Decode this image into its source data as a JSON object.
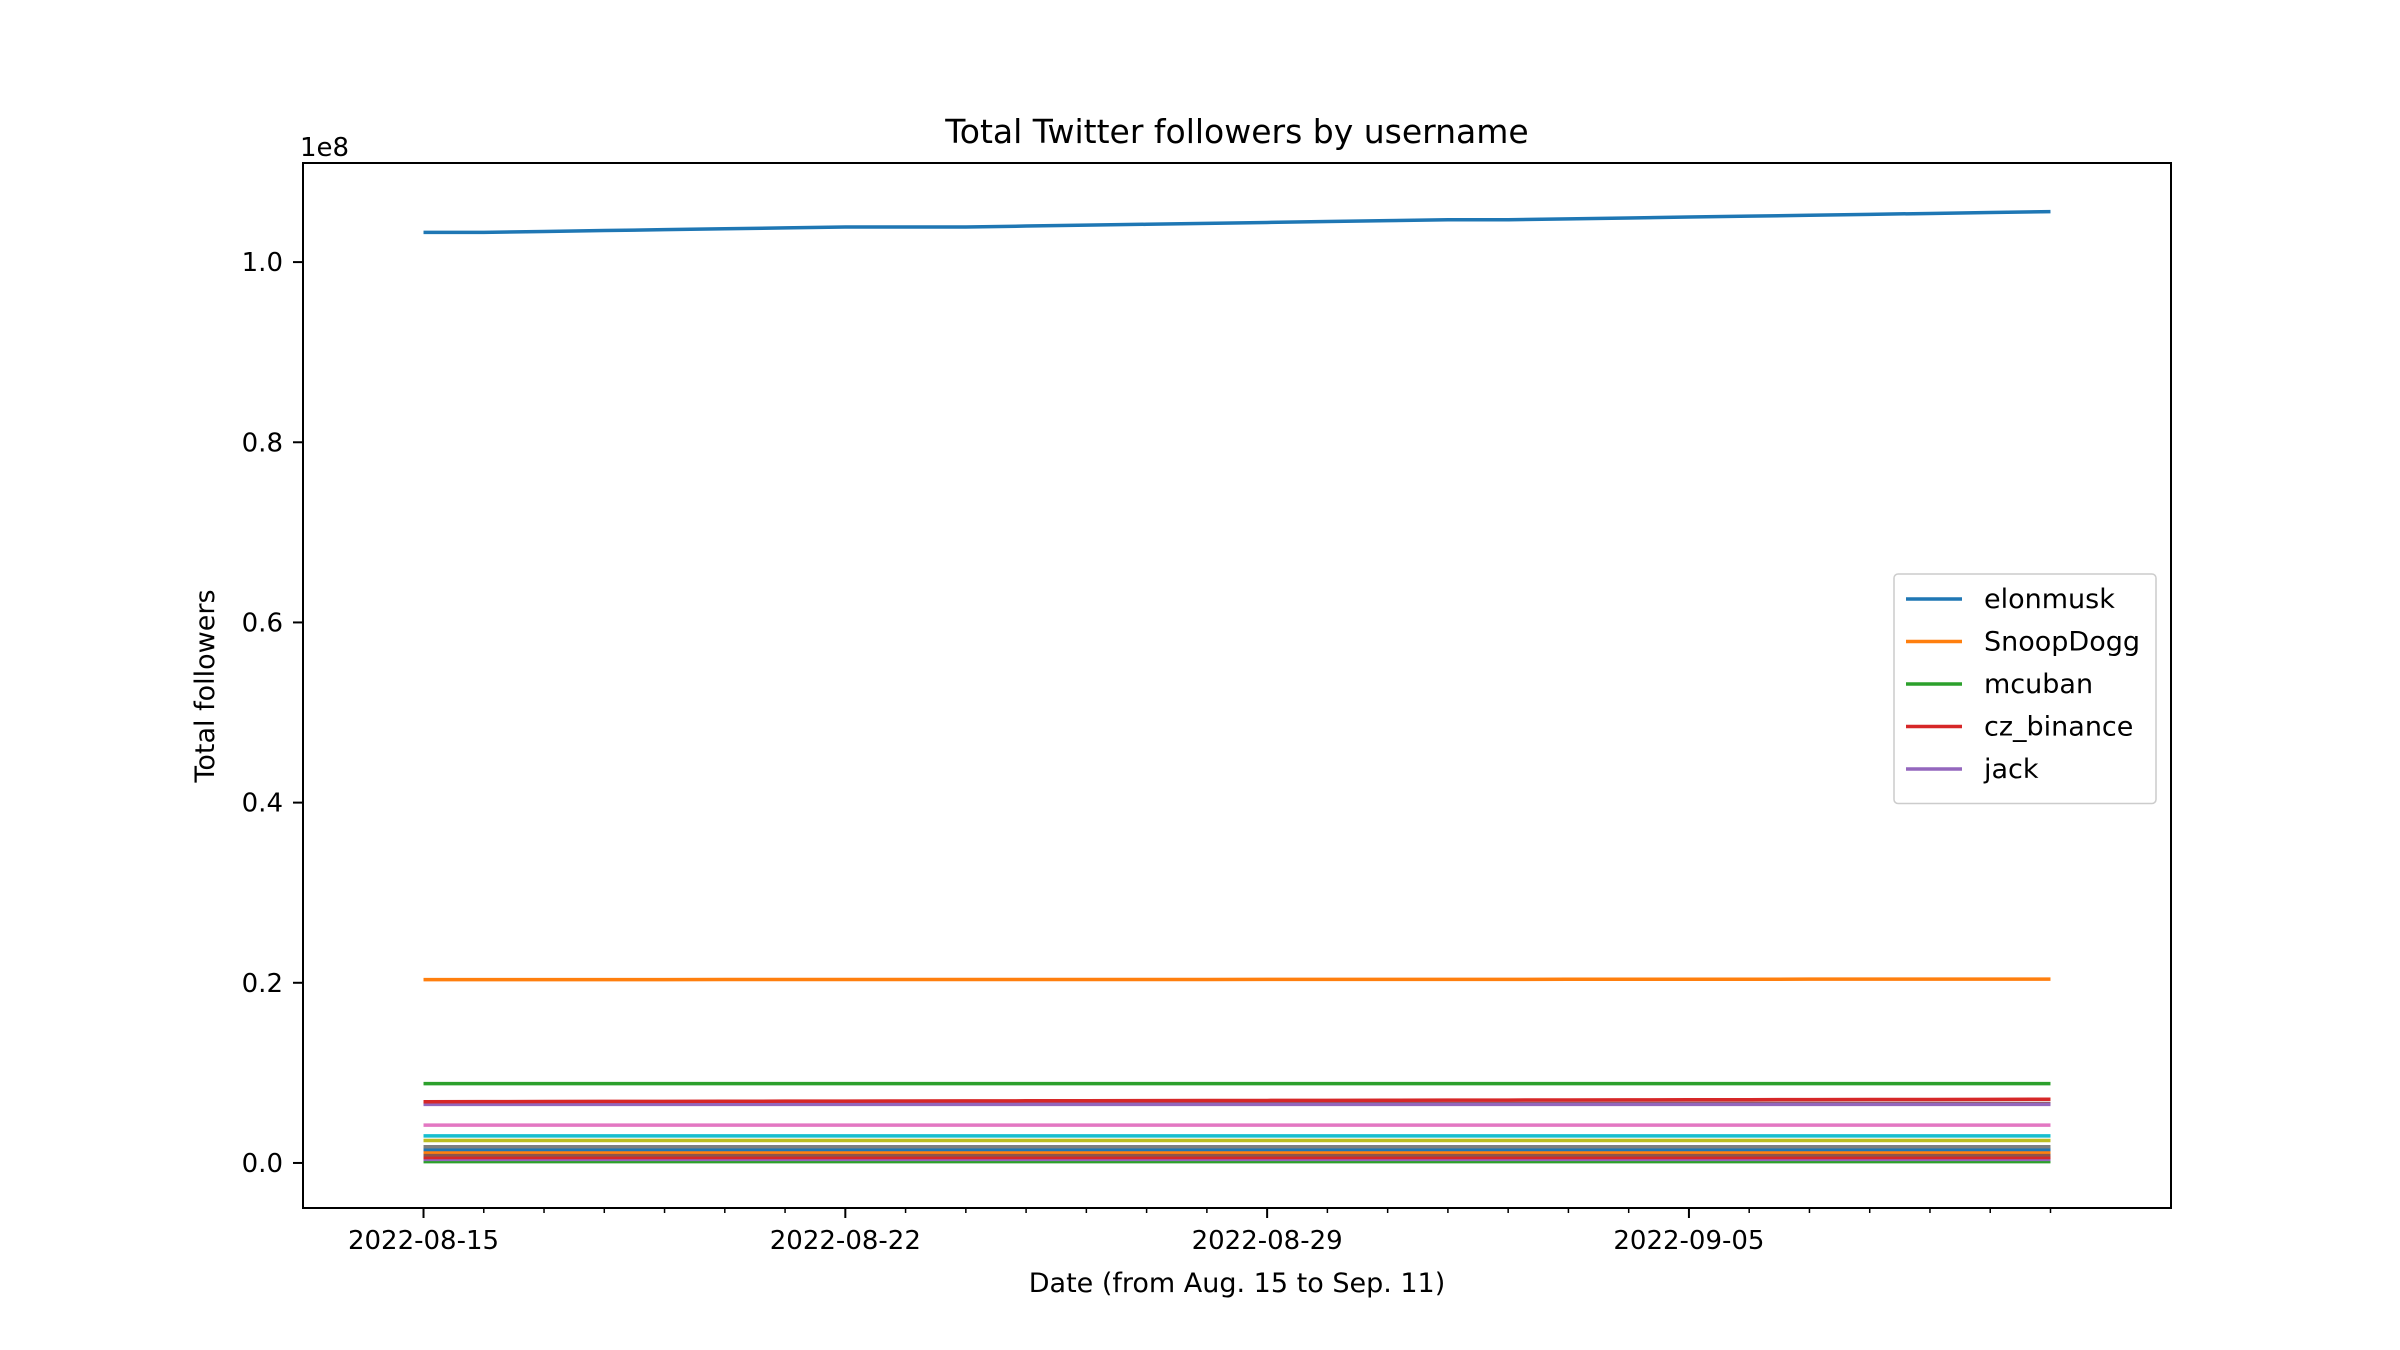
{
  "chart_data": {
    "type": "line",
    "title": "Total Twitter followers by username",
    "xlabel": "Date (from Aug. 15 to Sep. 11)",
    "ylabel": "Total followers",
    "y_offset_label": "1e8",
    "y_scale_factor": 100000000,
    "xlim": [
      "2022-08-13",
      "2022-09-13"
    ],
    "ylim": [
      -0.05,
      1.11
    ],
    "x_ticks": [
      "2022-08-15",
      "2022-08-22",
      "2022-08-29",
      "2022-09-05"
    ],
    "y_ticks": [
      0.0,
      0.2,
      0.4,
      0.6,
      0.8,
      1.0
    ],
    "y_tick_labels": [
      "0.0",
      "0.2",
      "0.4",
      "0.6",
      "0.8",
      "1.0"
    ],
    "grid": false,
    "legend_position": "center-right",
    "x": [
      "2022-08-15",
      "2022-08-16",
      "2022-08-17",
      "2022-08-18",
      "2022-08-19",
      "2022-08-20",
      "2022-08-21",
      "2022-08-22",
      "2022-08-23",
      "2022-08-24",
      "2022-08-25",
      "2022-08-26",
      "2022-08-27",
      "2022-08-28",
      "2022-08-29",
      "2022-08-30",
      "2022-08-31",
      "2022-09-01",
      "2022-09-02",
      "2022-09-03",
      "2022-09-04",
      "2022-09-05",
      "2022-09-06",
      "2022-09-07",
      "2022-09-08",
      "2022-09-09",
      "2022-09-10",
      "2022-09-11"
    ],
    "series": [
      {
        "name": "elonmusk",
        "color": "#1f77b4",
        "legend": true,
        "values": [
          1.033,
          1.033,
          1.034,
          1.035,
          1.036,
          1.037,
          1.038,
          1.039,
          1.039,
          1.039,
          1.04,
          1.041,
          1.042,
          1.043,
          1.044,
          1.045,
          1.046,
          1.047,
          1.047,
          1.048,
          1.049,
          1.05,
          1.051,
          1.052,
          1.053,
          1.054,
          1.055,
          1.056
        ]
      },
      {
        "name": "SnoopDogg",
        "color": "#ff7f0e",
        "legend": true,
        "values": [
          0.2035,
          0.2035,
          0.2035,
          0.2035,
          0.2035,
          0.2036,
          0.2036,
          0.2036,
          0.2036,
          0.2036,
          0.2037,
          0.2037,
          0.2037,
          0.2037,
          0.2038,
          0.2038,
          0.2038,
          0.2038,
          0.2038,
          0.2039,
          0.2039,
          0.2039,
          0.2039,
          0.204,
          0.204,
          0.204,
          0.2041,
          0.2041
        ]
      },
      {
        "name": "mcuban",
        "color": "#2ca02c",
        "legend": true,
        "values": [
          0.088,
          0.088,
          0.088,
          0.088,
          0.088,
          0.088,
          0.088,
          0.088,
          0.088,
          0.088,
          0.088,
          0.088,
          0.088,
          0.088,
          0.088,
          0.088,
          0.088,
          0.088,
          0.088,
          0.088,
          0.088,
          0.088,
          0.088,
          0.088,
          0.088,
          0.088,
          0.088,
          0.088
        ]
      },
      {
        "name": "cz_binance",
        "color": "#d62728",
        "legend": true,
        "values": [
          0.068,
          0.0681,
          0.0682,
          0.0683,
          0.0684,
          0.0685,
          0.0686,
          0.0687,
          0.0688,
          0.0689,
          0.069,
          0.0691,
          0.0692,
          0.0693,
          0.0694,
          0.0695,
          0.0696,
          0.0697,
          0.0698,
          0.0699,
          0.07,
          0.0701,
          0.0702,
          0.0703,
          0.0704,
          0.0705,
          0.0706,
          0.0707
        ]
      },
      {
        "name": "jack",
        "color": "#9467bd",
        "legend": true,
        "values": [
          0.065,
          0.065,
          0.065,
          0.065,
          0.065,
          0.065,
          0.065,
          0.065,
          0.065,
          0.065,
          0.065,
          0.065,
          0.065,
          0.065,
          0.065,
          0.065,
          0.065,
          0.065,
          0.065,
          0.065,
          0.065,
          0.065,
          0.065,
          0.065,
          0.065,
          0.065,
          0.065,
          0.065
        ]
      },
      {
        "name": "",
        "color": "#8c564b",
        "legend": false,
        "values": [
          0.066,
          0.066,
          0.066,
          0.066,
          0.066,
          0.066,
          0.066,
          0.066,
          0.066,
          0.066,
          0.066,
          0.066,
          0.066,
          0.066,
          0.066,
          0.066,
          0.066,
          0.066,
          0.066,
          0.066,
          0.066,
          0.066,
          0.066,
          0.066,
          0.066,
          0.066,
          0.066,
          0.066
        ]
      },
      {
        "name": "",
        "color": "#e377c2",
        "legend": false,
        "values": [
          0.042,
          0.042,
          0.042,
          0.042,
          0.042,
          0.042,
          0.042,
          0.042,
          0.042,
          0.042,
          0.042,
          0.042,
          0.042,
          0.042,
          0.042,
          0.042,
          0.042,
          0.042,
          0.042,
          0.042,
          0.042,
          0.042,
          0.042,
          0.042,
          0.042,
          0.042,
          0.042,
          0.042
        ]
      },
      {
        "name": "",
        "color": "#17becf",
        "legend": false,
        "values": [
          0.03,
          0.03,
          0.03,
          0.03,
          0.03,
          0.03,
          0.03,
          0.03,
          0.03,
          0.03,
          0.03,
          0.03,
          0.03,
          0.03,
          0.03,
          0.03,
          0.03,
          0.03,
          0.03,
          0.03,
          0.03,
          0.03,
          0.03,
          0.03,
          0.03,
          0.03,
          0.03,
          0.03
        ]
      },
      {
        "name": "",
        "color": "#bcbd22",
        "legend": false,
        "values": [
          0.025,
          0.025,
          0.025,
          0.025,
          0.025,
          0.025,
          0.025,
          0.025,
          0.025,
          0.025,
          0.025,
          0.025,
          0.025,
          0.025,
          0.025,
          0.025,
          0.025,
          0.025,
          0.025,
          0.025,
          0.025,
          0.025,
          0.025,
          0.025,
          0.025,
          0.025,
          0.025,
          0.025
        ]
      },
      {
        "name": "",
        "color": "#7f7f7f",
        "legend": false,
        "values": [
          0.018,
          0.018,
          0.018,
          0.018,
          0.018,
          0.018,
          0.018,
          0.018,
          0.018,
          0.018,
          0.018,
          0.018,
          0.018,
          0.018,
          0.018,
          0.018,
          0.018,
          0.018,
          0.018,
          0.018,
          0.018,
          0.018,
          0.018,
          0.018,
          0.018,
          0.018,
          0.018,
          0.018
        ]
      },
      {
        "name": "",
        "color": "#1f77b4",
        "legend": false,
        "values": [
          0.015,
          0.015,
          0.015,
          0.015,
          0.015,
          0.015,
          0.015,
          0.015,
          0.015,
          0.015,
          0.015,
          0.015,
          0.015,
          0.015,
          0.015,
          0.015,
          0.015,
          0.015,
          0.015,
          0.015,
          0.015,
          0.015,
          0.015,
          0.015,
          0.015,
          0.015,
          0.015,
          0.015
        ]
      },
      {
        "name": "",
        "color": "#ff7f0e",
        "legend": false,
        "values": [
          0.012,
          0.012,
          0.012,
          0.012,
          0.012,
          0.012,
          0.012,
          0.012,
          0.012,
          0.012,
          0.012,
          0.012,
          0.012,
          0.012,
          0.012,
          0.012,
          0.012,
          0.012,
          0.012,
          0.012,
          0.012,
          0.012,
          0.012,
          0.012,
          0.012,
          0.012,
          0.012,
          0.012
        ]
      },
      {
        "name": "",
        "color": "#8c564b",
        "legend": false,
        "values": [
          0.009,
          0.009,
          0.009,
          0.009,
          0.009,
          0.009,
          0.009,
          0.009,
          0.009,
          0.009,
          0.009,
          0.009,
          0.009,
          0.009,
          0.009,
          0.009,
          0.009,
          0.009,
          0.009,
          0.009,
          0.009,
          0.009,
          0.009,
          0.009,
          0.009,
          0.009,
          0.009,
          0.009
        ]
      },
      {
        "name": "",
        "color": "#d62728",
        "legend": false,
        "values": [
          0.006,
          0.006,
          0.006,
          0.006,
          0.006,
          0.006,
          0.006,
          0.006,
          0.006,
          0.006,
          0.006,
          0.006,
          0.006,
          0.006,
          0.006,
          0.006,
          0.006,
          0.006,
          0.006,
          0.006,
          0.006,
          0.006,
          0.006,
          0.006,
          0.006,
          0.006,
          0.006,
          0.006
        ]
      },
      {
        "name": "",
        "color": "#9467bd",
        "legend": false,
        "values": [
          0.004,
          0.004,
          0.004,
          0.004,
          0.004,
          0.004,
          0.004,
          0.004,
          0.004,
          0.004,
          0.004,
          0.004,
          0.004,
          0.004,
          0.004,
          0.004,
          0.004,
          0.004,
          0.004,
          0.004,
          0.004,
          0.004,
          0.004,
          0.004,
          0.004,
          0.004,
          0.004,
          0.004
        ]
      },
      {
        "name": "",
        "color": "#2ca02c",
        "legend": false,
        "values": [
          0.0015,
          0.0015,
          0.0015,
          0.0015,
          0.0015,
          0.0015,
          0.0015,
          0.0015,
          0.0015,
          0.0015,
          0.0015,
          0.0015,
          0.0015,
          0.0015,
          0.0015,
          0.0015,
          0.0015,
          0.0015,
          0.0015,
          0.0015,
          0.0015,
          0.0015,
          0.0015,
          0.0015,
          0.0015,
          0.0015,
          0.0015,
          0.0015
        ]
      }
    ]
  }
}
